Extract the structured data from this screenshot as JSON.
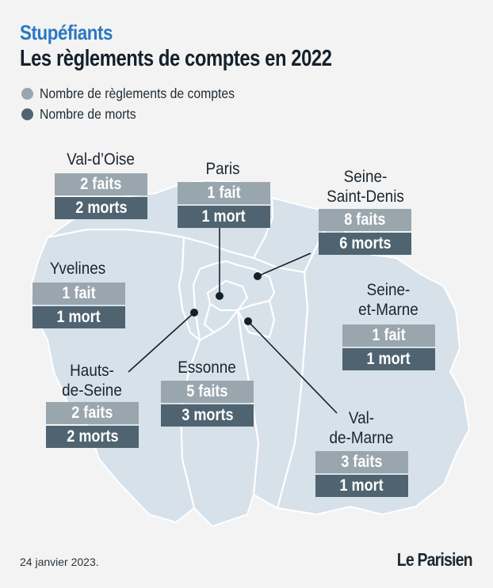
{
  "header": {
    "kicker": "Stupéfiants",
    "title": "Les règlements de comptes en 2022"
  },
  "legend": [
    {
      "label": "Nombre de règlements de comptes",
      "color": "#9aa6ae"
    },
    {
      "label": "Nombre de morts",
      "color": "#4f6470"
    }
  ],
  "colors": {
    "accent": "#2a77c4",
    "map_fill": "#d7e1ea",
    "border": "#ffffff",
    "faits_box": "#9aa6ae",
    "morts_box": "#4f6470"
  },
  "departments": [
    {
      "name": "Val-d’Oise",
      "faits": "2 faits",
      "morts": "2 morts",
      "count_faits": 2,
      "count_morts": 2
    },
    {
      "name": "Paris",
      "faits": "1 fait",
      "morts": "1 mort",
      "count_faits": 1,
      "count_morts": 1
    },
    {
      "name": "Seine-Saint-Denis",
      "name_lines": [
        "Seine-",
        "Saint-Denis"
      ],
      "faits": "8 faits",
      "morts": "6 morts",
      "count_faits": 8,
      "count_morts": 6
    },
    {
      "name": "Yvelines",
      "faits": "1 fait",
      "morts": "1 mort",
      "count_faits": 1,
      "count_morts": 1
    },
    {
      "name": "Seine-et-Marne",
      "name_lines": [
        "Seine-",
        "et-Marne"
      ],
      "faits": "1 fait",
      "morts": "1 mort",
      "count_faits": 1,
      "count_morts": 1
    },
    {
      "name": "Hauts-de-Seine",
      "name_lines": [
        "Hauts-",
        "de-Seine"
      ],
      "faits": "2 faits",
      "morts": "2 morts",
      "count_faits": 2,
      "count_morts": 2
    },
    {
      "name": "Essonne",
      "faits": "5 faits",
      "morts": "3 morts",
      "count_faits": 5,
      "count_morts": 3
    },
    {
      "name": "Val-de-Marne",
      "name_lines": [
        "Val-",
        "de-Marne"
      ],
      "faits": "3 faits",
      "morts": "1 mort",
      "count_faits": 3,
      "count_morts": 1
    }
  ],
  "footer": {
    "date": "24 janvier 2023.",
    "logo": "Le Parisien"
  }
}
